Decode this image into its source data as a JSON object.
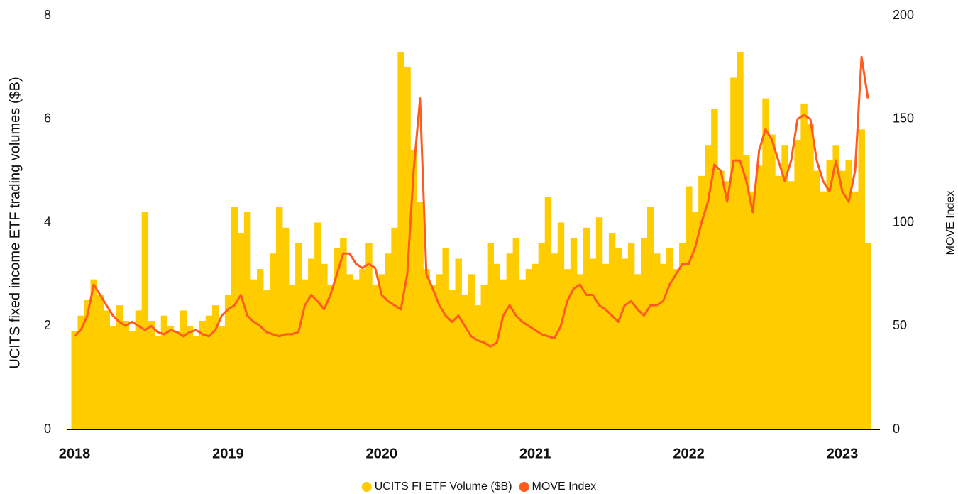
{
  "chart_data": {
    "type": "bar",
    "y_label": "UCITS fixed income ETF trading volumes ($B)",
    "y2_label": "MOVE Index",
    "categories": [
      "2018",
      null,
      null,
      null,
      null,
      null,
      null,
      null,
      null,
      null,
      null,
      null,
      null,
      null,
      null,
      null,
      null,
      null,
      null,
      null,
      null,
      null,
      null,
      null,
      "2019",
      null,
      null,
      null,
      null,
      null,
      null,
      null,
      null,
      null,
      null,
      null,
      null,
      null,
      null,
      null,
      null,
      null,
      null,
      null,
      null,
      null,
      null,
      null,
      "2020",
      null,
      null,
      null,
      null,
      null,
      null,
      null,
      null,
      null,
      null,
      null,
      null,
      null,
      null,
      null,
      null,
      null,
      null,
      null,
      null,
      null,
      null,
      null,
      "2021",
      null,
      null,
      null,
      null,
      null,
      null,
      null,
      null,
      null,
      null,
      null,
      null,
      null,
      null,
      null,
      null,
      null,
      null,
      null,
      null,
      null,
      null,
      null,
      "2022",
      null,
      null,
      null,
      null,
      null,
      null,
      null,
      null,
      null,
      null,
      null,
      null,
      null,
      null,
      null,
      null,
      null,
      null,
      null,
      null,
      null,
      null,
      null,
      "2023",
      null,
      null,
      null,
      null
    ],
    "series": [
      {
        "name": "UCITS FI ETF Volume ($B)",
        "color": "#ffcc00",
        "values": [
          1.9,
          2.2,
          2.5,
          2.9,
          2.6,
          2.3,
          2.0,
          2.4,
          2.1,
          1.9,
          2.3,
          4.2,
          2.1,
          1.8,
          2.2,
          2.0,
          1.9,
          2.3,
          2.0,
          1.8,
          2.1,
          2.2,
          2.4,
          2.0,
          2.6,
          4.3,
          3.8,
          4.2,
          2.9,
          3.1,
          2.7,
          3.4,
          4.3,
          3.9,
          2.8,
          3.6,
          2.9,
          3.3,
          4.0,
          3.2,
          2.8,
          3.5,
          3.7,
          3.0,
          2.9,
          3.1,
          3.6,
          2.8,
          3.0,
          3.4,
          3.9,
          7.3,
          7.0,
          5.4,
          4.4,
          3.1,
          2.8,
          3.0,
          3.5,
          2.7,
          3.3,
          2.6,
          3.0,
          2.4,
          2.8,
          3.6,
          3.2,
          2.9,
          3.4,
          3.7,
          2.9,
          3.1,
          3.2,
          3.6,
          4.5,
          3.4,
          4.0,
          3.1,
          3.7,
          3.0,
          3.9,
          3.3,
          4.1,
          3.2,
          3.8,
          3.5,
          3.3,
          3.6,
          3.0,
          3.7,
          4.3,
          3.4,
          3.2,
          3.5,
          3.1,
          3.6,
          4.7,
          4.2,
          4.9,
          5.5,
          6.2,
          5.0,
          4.8,
          6.8,
          7.3,
          5.3,
          4.6,
          5.1,
          6.4,
          5.7,
          4.9,
          5.5,
          4.8,
          5.6,
          6.3,
          5.9,
          5.0,
          4.6,
          5.2,
          5.5,
          5.0,
          5.2,
          4.6,
          5.8,
          3.6
        ]
      },
      {
        "name": "MOVE Index",
        "color": "#ff5a1f",
        "type": "line",
        "axis": "y2",
        "values": [
          45,
          48,
          55,
          70,
          65,
          60,
          55,
          52,
          50,
          52,
          50,
          48,
          50,
          47,
          46,
          48,
          47,
          45,
          47,
          48,
          46,
          45,
          48,
          55,
          58,
          60,
          65,
          55,
          52,
          50,
          47,
          46,
          45,
          46,
          46,
          47,
          60,
          65,
          62,
          58,
          65,
          75,
          85,
          85,
          80,
          78,
          80,
          78,
          65,
          62,
          60,
          58,
          75,
          125,
          160,
          75,
          68,
          60,
          55,
          52,
          55,
          50,
          45,
          43,
          42,
          40,
          42,
          55,
          60,
          55,
          52,
          50,
          48,
          46,
          45,
          44,
          50,
          62,
          68,
          70,
          65,
          65,
          60,
          58,
          55,
          52,
          60,
          62,
          58,
          55,
          60,
          60,
          62,
          70,
          75,
          80,
          80,
          88,
          100,
          110,
          128,
          125,
          110,
          130,
          130,
          120,
          105,
          135,
          145,
          140,
          130,
          120,
          130,
          150,
          152,
          150,
          130,
          120,
          115,
          130,
          115,
          110,
          125,
          180,
          160
        ]
      }
    ],
    "ylim": [
      0,
      8
    ],
    "yticks": [
      0,
      2,
      4,
      6,
      8
    ],
    "y2lim": [
      0,
      200
    ],
    "y2ticks": [
      0,
      50,
      100,
      150,
      200
    ]
  }
}
